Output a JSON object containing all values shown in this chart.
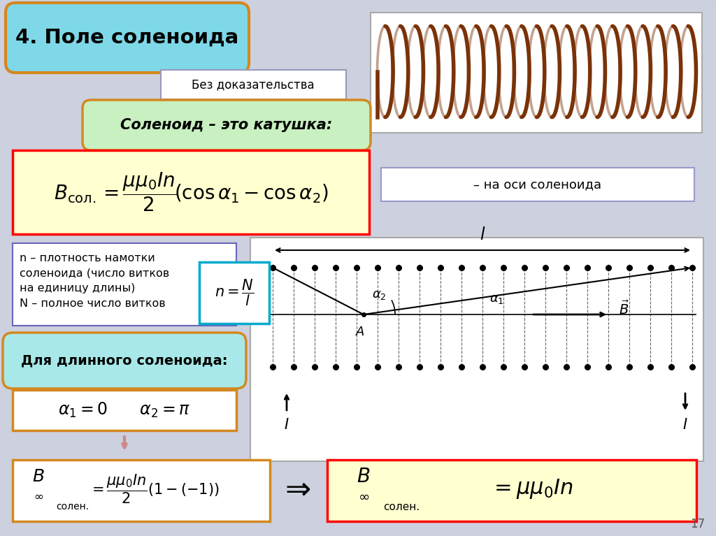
{
  "bg_color": "#cdd0de",
  "title": "4. Поле соленоида",
  "title_bg": "#7ed8e8",
  "title_border": "#d48820",
  "subtitle_text": "Без доказательства",
  "solenoid_label": "Соленоид – это катушка:",
  "axis_label": "– на оси соленоида",
  "long_sol_label": "Для длинного соленоида:",
  "page_num": "17"
}
